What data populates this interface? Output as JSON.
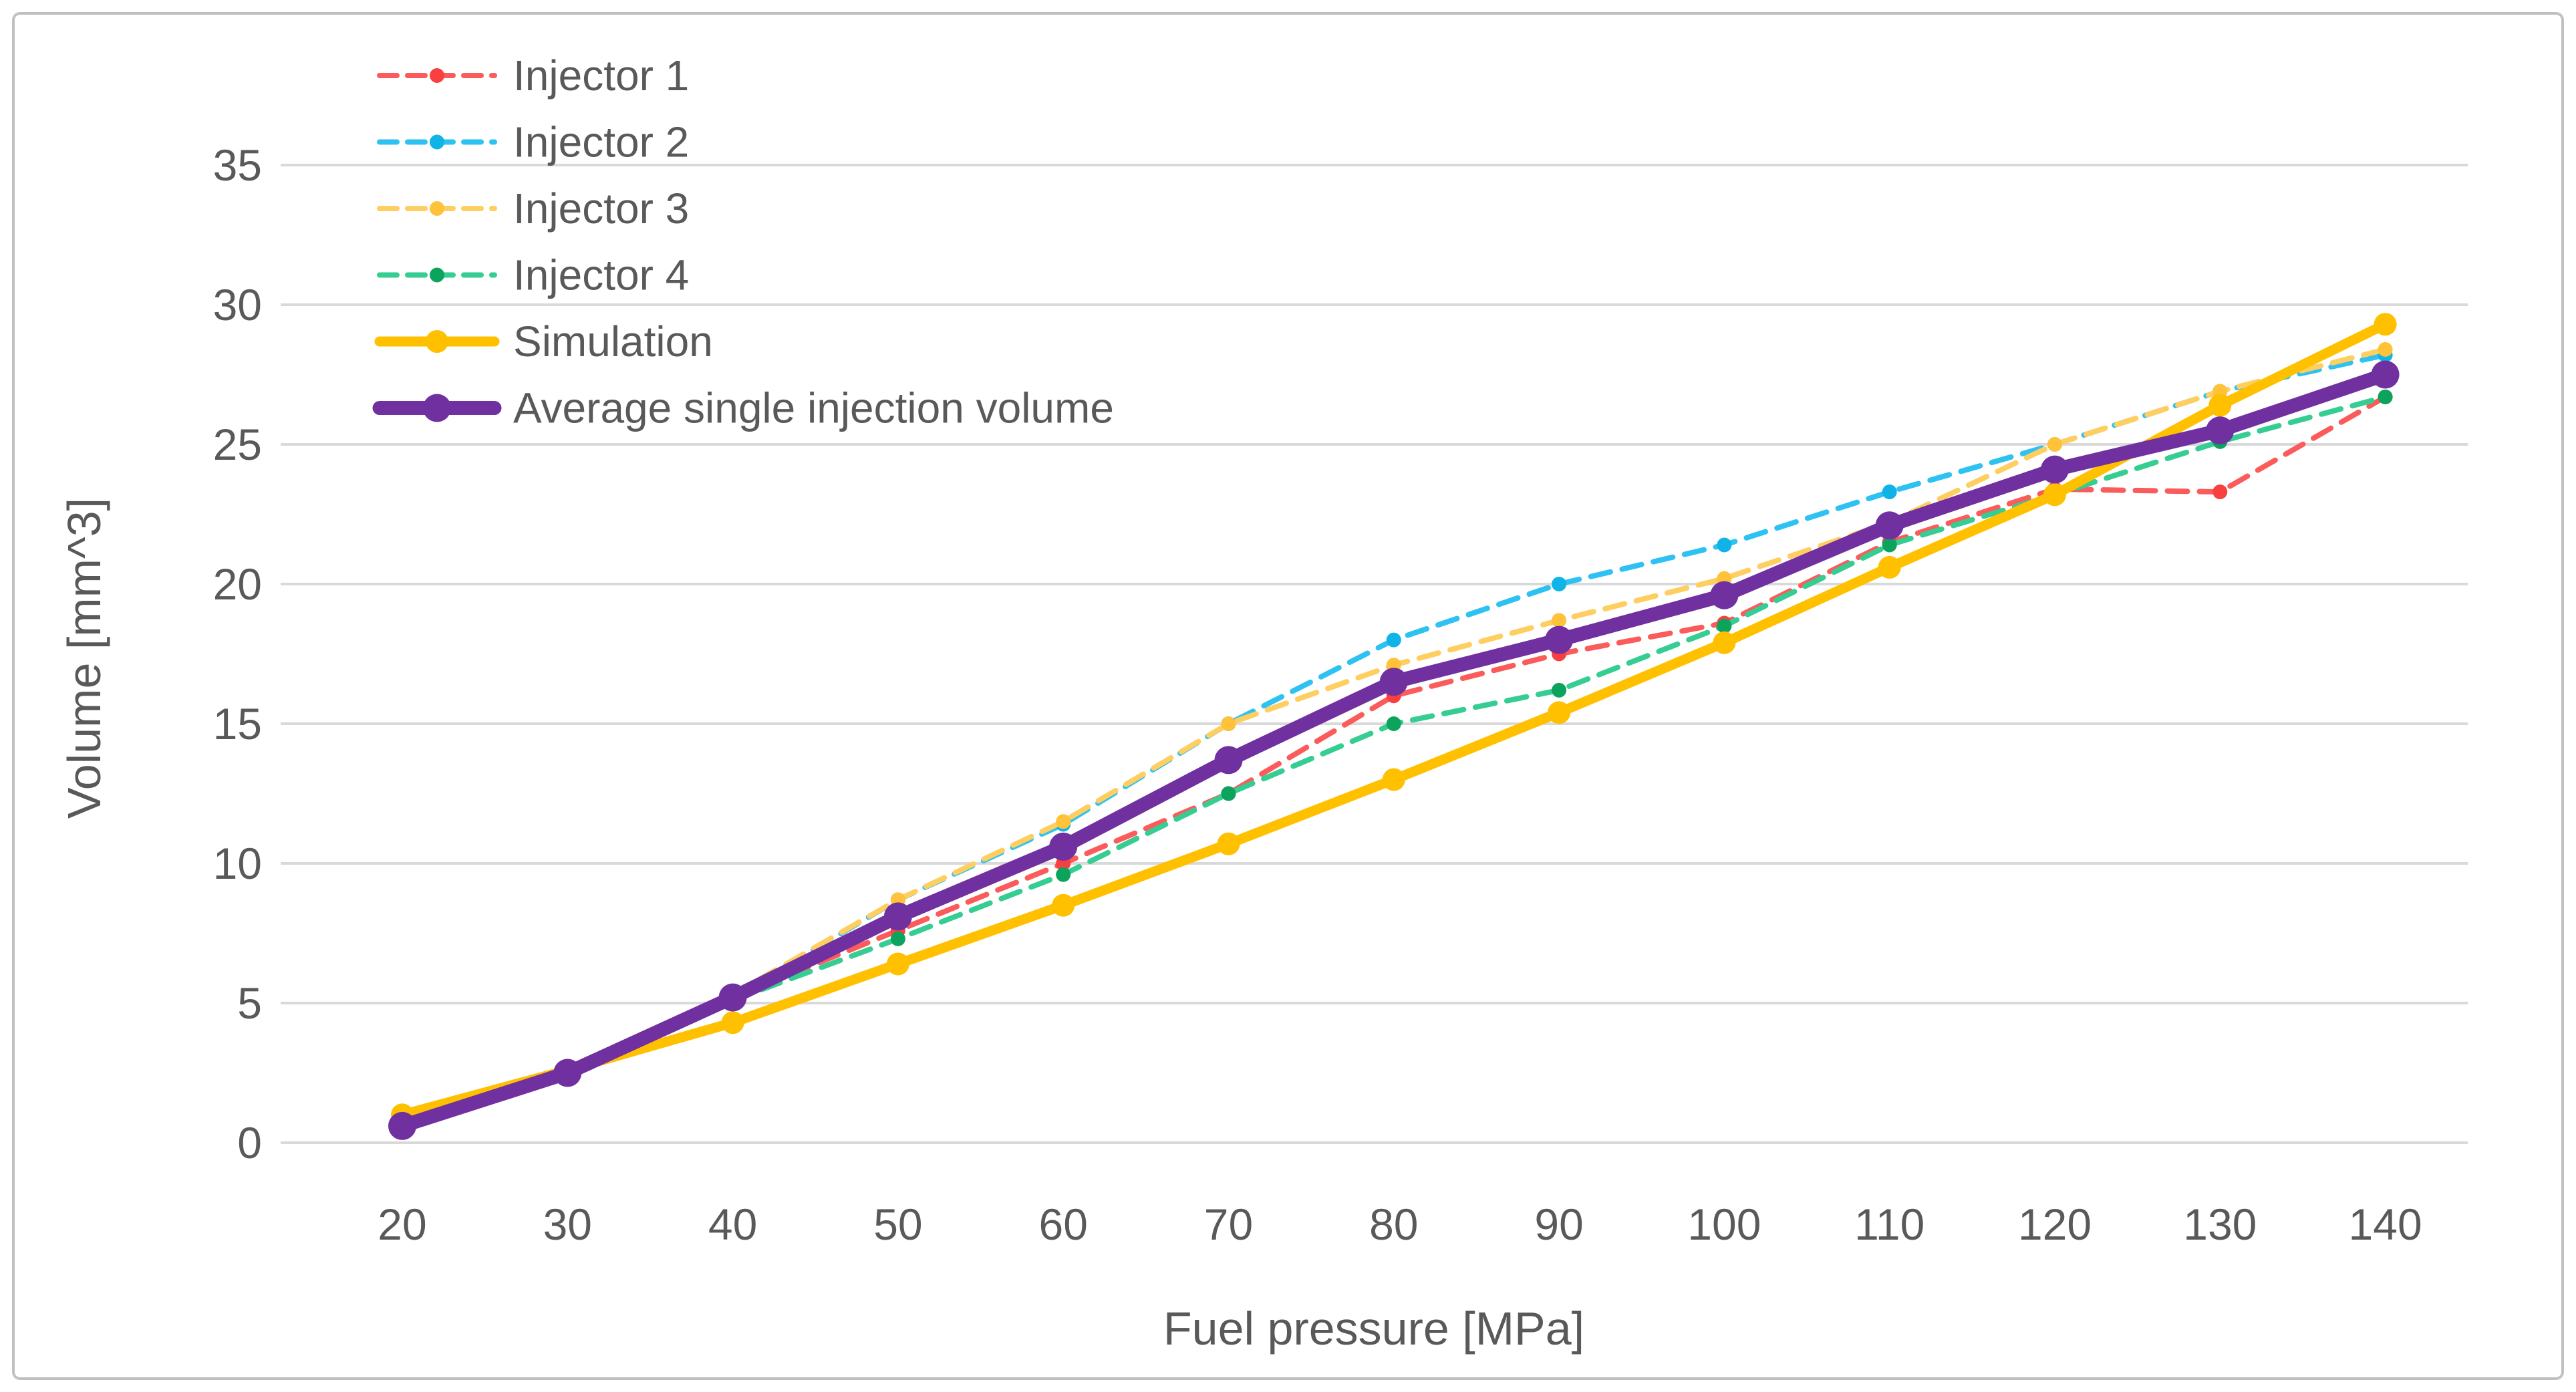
{
  "chart_data": {
    "type": "line",
    "title": "",
    "xlabel": "Fuel pressure [MPa]",
    "ylabel": "Volume [mm^3]",
    "x": [
      20,
      30,
      40,
      50,
      60,
      70,
      80,
      90,
      100,
      110,
      120,
      130,
      140
    ],
    "y_ticks": [
      0,
      5,
      10,
      15,
      20,
      25,
      30,
      35
    ],
    "ylim": [
      0,
      35
    ],
    "grid": "horizontal",
    "legend_position": "top-left-inside",
    "series": [
      {
        "name": "Injector 1",
        "color": "#FB5B5B",
        "marker_color": "#F94040",
        "style": "dashed",
        "width": "thin",
        "values": [
          0.6,
          2.4,
          5.2,
          7.6,
          10.0,
          12.5,
          16.0,
          17.5,
          18.6,
          21.5,
          23.4,
          23.3,
          26.7
        ]
      },
      {
        "name": "Injector 2",
        "color": "#2EC2F2",
        "marker_color": "#0FB3E8",
        "style": "dashed",
        "width": "thin",
        "values": [
          0.6,
          2.4,
          5.2,
          8.7,
          11.4,
          15.0,
          18.0,
          20.0,
          21.4,
          23.3,
          25.0,
          26.9,
          28.2
        ]
      },
      {
        "name": "Injector 3",
        "color": "#FFCE60",
        "marker_color": "#FFC239",
        "style": "dashed",
        "width": "thin",
        "values": [
          0.7,
          2.5,
          5.3,
          8.7,
          11.5,
          15.0,
          17.1,
          18.7,
          20.2,
          22.2,
          25.0,
          26.9,
          28.4
        ]
      },
      {
        "name": "Injector 4",
        "color": "#35CD92",
        "marker_color": "#0CA35C",
        "style": "dashed",
        "width": "thin",
        "values": [
          0.6,
          2.4,
          5.1,
          7.3,
          9.6,
          12.5,
          15.0,
          16.2,
          18.5,
          21.4,
          23.2,
          25.1,
          26.7
        ]
      },
      {
        "name": "Simulation",
        "color": "#FFC000",
        "marker_color": "#FFC000",
        "style": "solid",
        "width": "medium",
        "values": [
          1.0,
          2.6,
          4.3,
          6.4,
          8.5,
          10.7,
          13.0,
          15.4,
          17.9,
          20.6,
          23.2,
          26.4,
          29.3
        ]
      },
      {
        "name": "Average single injection volume",
        "color": "#7030A0",
        "marker_color": "#7030A0",
        "style": "solid",
        "width": "thick",
        "values": [
          0.6,
          2.5,
          5.2,
          8.1,
          10.6,
          13.7,
          16.5,
          18.0,
          19.6,
          22.1,
          24.1,
          25.5,
          27.5
        ]
      }
    ],
    "colors": {
      "gridline": "#D9D9D9",
      "text": "#595959",
      "figure_border": "#C0C0C0",
      "background": "#FFFFFF"
    }
  }
}
